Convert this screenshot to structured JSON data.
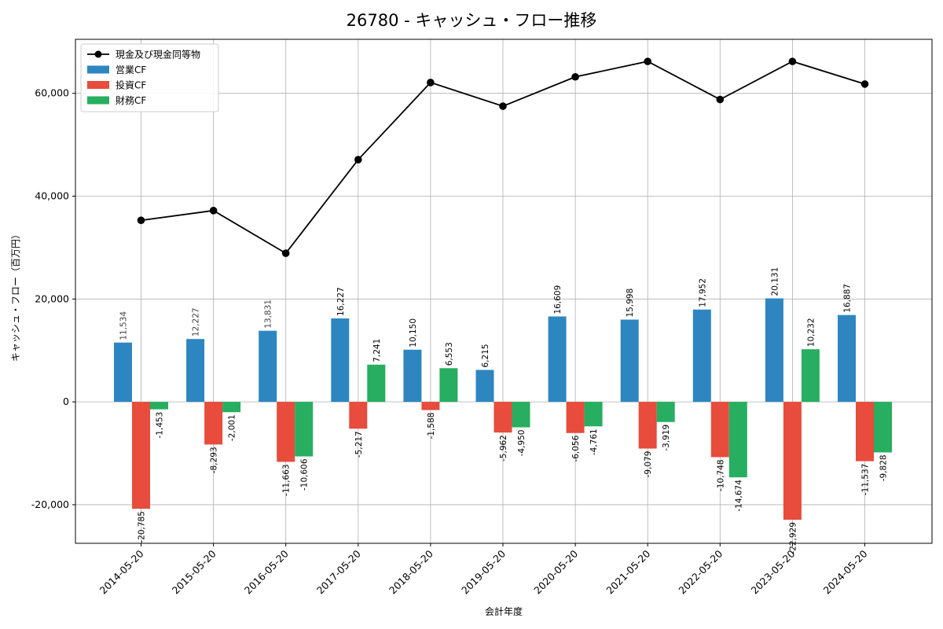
{
  "chart_data": {
    "type": "bar",
    "title": "26780 - キャッシュ・フロー推移",
    "xlabel": "会計年度",
    "ylabel": "キャッシュ・フロー（百万円）",
    "ylim": [
      -27500,
      70500
    ],
    "yticks": [
      -20000,
      0,
      20000,
      40000,
      60000
    ],
    "ytick_labels": [
      "-20,000",
      "0",
      "20,000",
      "40,000",
      "60,000"
    ],
    "grid": true,
    "legend_position": "top-left",
    "categories": [
      "2014-05-20",
      "2015-05-20",
      "2016-05-20",
      "2017-05-20",
      "2018-05-20",
      "2019-05-20",
      "2020-05-20",
      "2021-05-20",
      "2022-05-20",
      "2023-05-20",
      "2024-05-20"
    ],
    "series": [
      {
        "name": "営業CF",
        "kind": "bar",
        "color": "#2e86c1",
        "values": [
          11534,
          12227,
          13831,
          16227,
          10150,
          6215,
          16609,
          15998,
          17952,
          20131,
          16887
        ],
        "labels": [
          "11,534",
          "12,227",
          "13,831",
          "16,227",
          "10,150",
          "6,215",
          "16,609",
          "15,998",
          "17,952",
          "20,131",
          "16,887"
        ]
      },
      {
        "name": "投資CF",
        "kind": "bar",
        "color": "#e74c3c",
        "values": [
          -20785,
          -8293,
          -11663,
          -5217,
          -1588,
          -5962,
          -6056,
          -9079,
          -10748,
          -22929,
          -11537
        ],
        "labels": [
          "-20,785",
          "-8,293",
          "-11,663",
          "-5,217",
          "-1,588",
          "-5,962",
          "-6,056",
          "-9,079",
          "-10,748",
          "-22,929",
          "-11,537"
        ]
      },
      {
        "name": "財務CF",
        "kind": "bar",
        "color": "#27ae60",
        "values": [
          -1453,
          -2001,
          -10606,
          7241,
          6553,
          -4950,
          -4761,
          -3919,
          -14674,
          10232,
          -9828
        ],
        "labels": [
          "-1,453",
          "-2,001",
          "-10,606",
          "7,241",
          "6,553",
          "-4,950",
          "-4,761",
          "-3,919",
          "-14,674",
          "10,232",
          "-9,828"
        ]
      },
      {
        "name": "現金及び現金同等物",
        "kind": "line",
        "color": "#000000",
        "values": [
          35300,
          37200,
          28900,
          47100,
          62100,
          57500,
          63200,
          66200,
          58800,
          66200,
          61800
        ]
      }
    ]
  }
}
